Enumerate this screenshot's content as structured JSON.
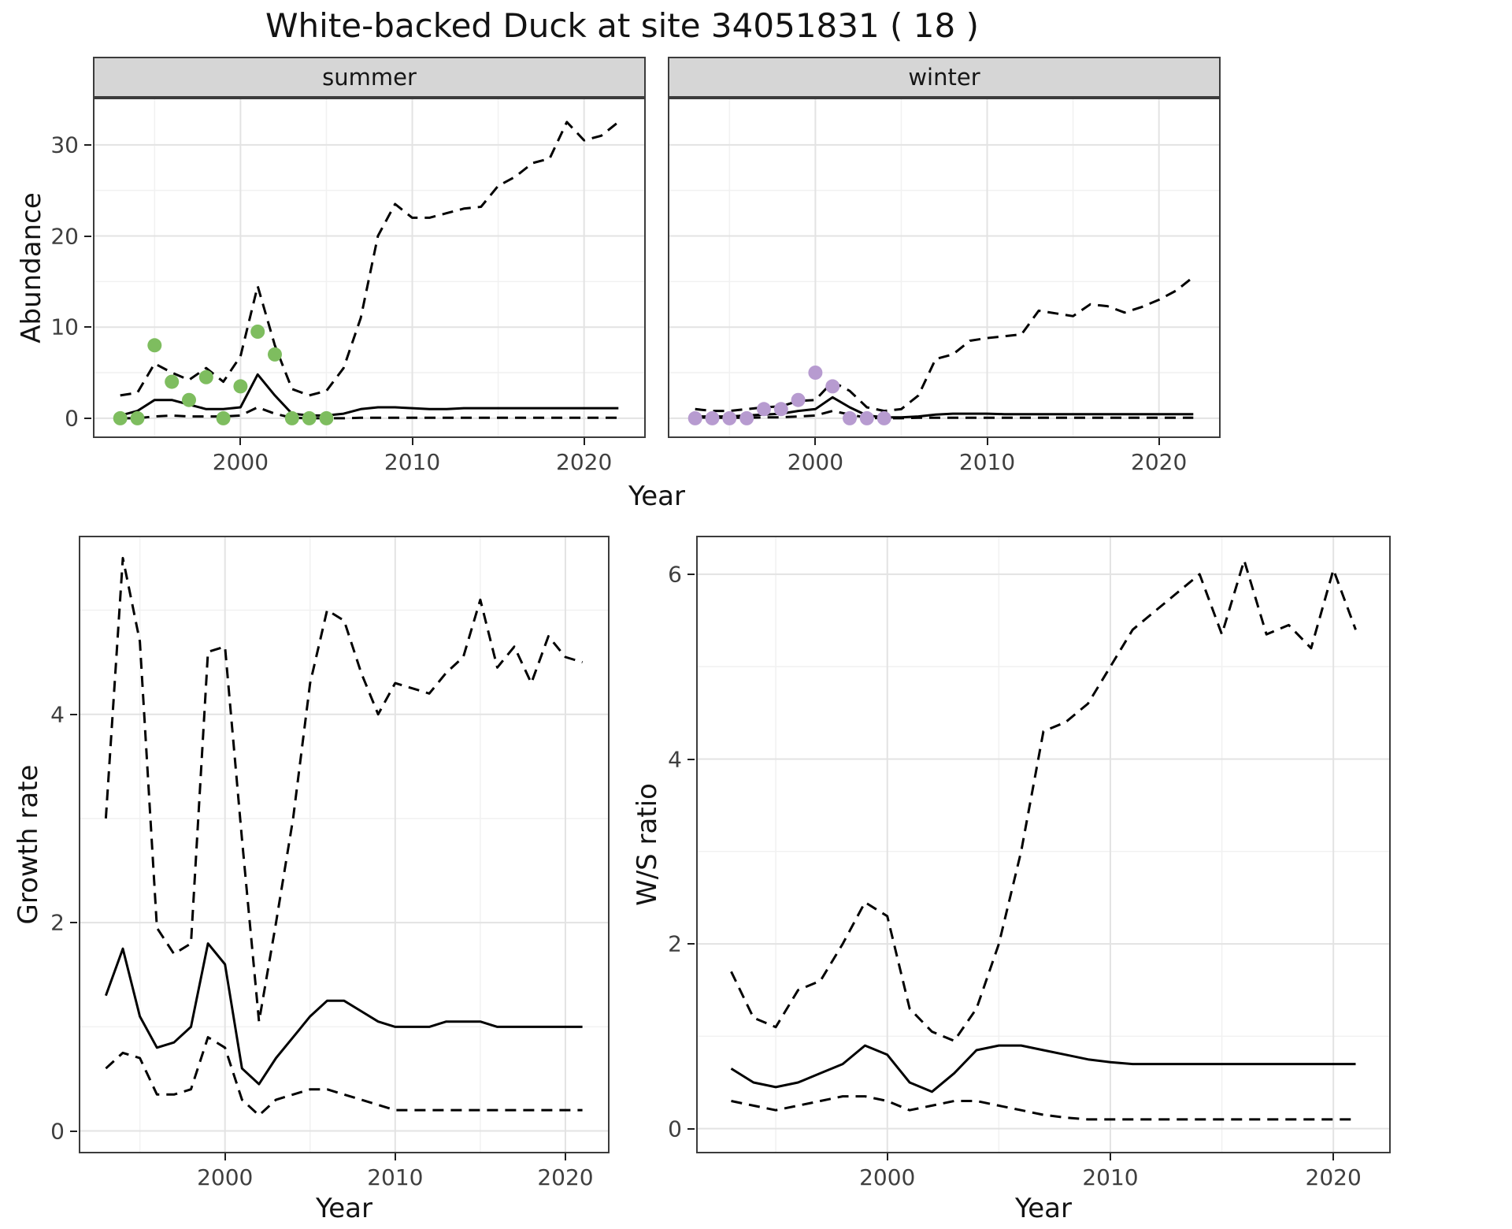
{
  "title": "White-backed Duck at site 34051831 ( 18 )",
  "colors": {
    "line": "#000000",
    "grid_major": "#e3e3e3",
    "grid_minor": "#f1f1f1",
    "strip_bg": "#d6d6d6",
    "panel_border": "#3c3c3c",
    "summer_points": "#7ebd5f",
    "winter_points": "#b79bd0"
  },
  "chart_data": [
    {
      "id": "abundance-summer",
      "type": "line",
      "facet_label": "summer",
      "xlabel": "Year",
      "ylabel": "Abundance",
      "xlim": [
        1991.5,
        2023.5
      ],
      "ylim": [
        -2,
        35
      ],
      "xticks": [
        2000,
        2010,
        2020
      ],
      "xticks_minor": [
        1995,
        2005,
        2015
      ],
      "yticks": [
        0,
        10,
        20,
        30
      ],
      "yticks_minor": [
        5,
        15,
        25
      ],
      "show_yticklabels": true,
      "legend": "none",
      "grid": true,
      "years": [
        1993,
        1994,
        1995,
        1996,
        1997,
        1998,
        1999,
        2000,
        2001,
        2002,
        2003,
        2004,
        2005,
        2006,
        2007,
        2008,
        2009,
        2010,
        2011,
        2012,
        2013,
        2014,
        2015,
        2016,
        2017,
        2018,
        2019,
        2020,
        2021,
        2022
      ],
      "series": [
        {
          "name": "median",
          "style": "solid",
          "values": [
            0.3,
            0.8,
            2.0,
            2.0,
            1.5,
            1.0,
            1.0,
            1.2,
            4.8,
            2.5,
            0.5,
            0.3,
            0.3,
            0.5,
            1.0,
            1.2,
            1.2,
            1.1,
            1.0,
            1.0,
            1.1,
            1.1,
            1.1,
            1.1,
            1.1,
            1.1,
            1.1,
            1.1,
            1.1,
            1.1
          ]
        },
        {
          "name": "upper-ci",
          "style": "dashed",
          "values": [
            2.5,
            2.8,
            6.0,
            5.0,
            4.2,
            5.5,
            4.0,
            6.8,
            14.5,
            8.0,
            3.2,
            2.5,
            3.0,
            5.5,
            11.0,
            20.0,
            23.5,
            22.0,
            22.0,
            22.5,
            23.0,
            23.2,
            25.5,
            26.5,
            28.0,
            28.5,
            32.5,
            30.5,
            31.0,
            32.5
          ]
        },
        {
          "name": "lower-ci",
          "style": "dashed",
          "values": [
            0.0,
            0.0,
            0.2,
            0.3,
            0.2,
            0.2,
            0.2,
            0.3,
            1.2,
            0.5,
            0.05,
            0.0,
            0.0,
            0.0,
            0.05,
            0.05,
            0.05,
            0.05,
            0.05,
            0.05,
            0.05,
            0.05,
            0.05,
            0.05,
            0.05,
            0.05,
            0.05,
            0.05,
            0.05,
            0.05
          ]
        },
        {
          "name": "observed-counts",
          "style": "points",
          "color": "#7ebd5f",
          "x": [
            1993,
            1994,
            1995,
            1996,
            1997,
            1998,
            1999,
            2000,
            2001,
            2002,
            2003,
            2004,
            2005
          ],
          "values": [
            0,
            0,
            8,
            4,
            2,
            4.5,
            0,
            3.5,
            9.5,
            7,
            0,
            0,
            0
          ]
        }
      ]
    },
    {
      "id": "abundance-winter",
      "type": "line",
      "facet_label": "winter",
      "xlabel": "Year",
      "ylabel": "",
      "xlim": [
        1991.5,
        2023.5
      ],
      "ylim": [
        -2,
        35
      ],
      "xticks": [
        2000,
        2010,
        2020
      ],
      "xticks_minor": [
        1995,
        2005,
        2015
      ],
      "yticks": [
        0,
        10,
        20,
        30
      ],
      "yticks_minor": [
        5,
        15,
        25
      ],
      "show_yticklabels": false,
      "legend": "none",
      "grid": true,
      "years": [
        1993,
        1994,
        1995,
        1996,
        1997,
        1998,
        1999,
        2000,
        2001,
        2002,
        2003,
        2004,
        2005,
        2006,
        2007,
        2008,
        2009,
        2010,
        2011,
        2012,
        2013,
        2014,
        2015,
        2016,
        2017,
        2018,
        2019,
        2020,
        2021,
        2022
      ],
      "series": [
        {
          "name": "median",
          "style": "solid",
          "values": [
            0.2,
            0.2,
            0.2,
            0.3,
            0.4,
            0.5,
            0.8,
            1.0,
            2.3,
            1.2,
            0.3,
            0.1,
            0.1,
            0.2,
            0.4,
            0.5,
            0.5,
            0.5,
            0.45,
            0.45,
            0.45,
            0.45,
            0.45,
            0.45,
            0.45,
            0.45,
            0.45,
            0.45,
            0.45,
            0.45
          ]
        },
        {
          "name": "upper-ci",
          "style": "dashed",
          "values": [
            1.0,
            0.8,
            0.8,
            1.0,
            1.2,
            1.3,
            1.9,
            2.0,
            4.0,
            3.0,
            1.2,
            0.8,
            1.0,
            2.5,
            6.5,
            7.0,
            8.5,
            8.8,
            9.0,
            9.2,
            11.8,
            11.5,
            11.2,
            12.5,
            12.3,
            11.6,
            12.2,
            13.0,
            14.0,
            15.5
          ]
        },
        {
          "name": "lower-ci",
          "style": "dashed",
          "values": [
            0.1,
            0.05,
            0.05,
            0.05,
            0.1,
            0.1,
            0.2,
            0.3,
            0.8,
            0.4,
            0.05,
            0.0,
            0.0,
            0.05,
            0.05,
            0.05,
            0.05,
            0.05,
            0.05,
            0.05,
            0.05,
            0.05,
            0.05,
            0.05,
            0.05,
            0.05,
            0.05,
            0.05,
            0.05,
            0.05
          ]
        },
        {
          "name": "observed-counts",
          "style": "points",
          "color": "#b79bd0",
          "x": [
            1993,
            1994,
            1995,
            1996,
            1997,
            1998,
            1999,
            2000,
            2001,
            2002,
            2003,
            2004
          ],
          "values": [
            0,
            0,
            0,
            0,
            1,
            1,
            2,
            5,
            3.5,
            0,
            0,
            0
          ]
        }
      ]
    },
    {
      "id": "growth-rate",
      "type": "line",
      "facet_label": "",
      "xlabel": "Year",
      "ylabel": "Growth rate",
      "xlim": [
        1991.5,
        2022.5
      ],
      "ylim": [
        -0.2,
        5.7
      ],
      "xticks": [
        2000,
        2010,
        2020
      ],
      "xticks_minor": [
        1995,
        2005,
        2015
      ],
      "yticks": [
        0,
        2,
        4
      ],
      "yticks_minor": [
        1,
        3,
        5
      ],
      "show_yticklabels": true,
      "legend": "none",
      "grid": true,
      "years": [
        1993,
        1994,
        1995,
        1996,
        1997,
        1998,
        1999,
        2000,
        2001,
        2002,
        2003,
        2004,
        2005,
        2006,
        2007,
        2008,
        2009,
        2010,
        2011,
        2012,
        2013,
        2014,
        2015,
        2016,
        2017,
        2018,
        2019,
        2020,
        2021
      ],
      "series": [
        {
          "name": "median",
          "style": "solid",
          "values": [
            1.3,
            1.75,
            1.1,
            0.8,
            0.85,
            1.0,
            1.8,
            1.6,
            0.6,
            0.45,
            0.7,
            0.9,
            1.1,
            1.25,
            1.25,
            1.15,
            1.05,
            1.0,
            1.0,
            1.0,
            1.05,
            1.05,
            1.05,
            1.0,
            1.0,
            1.0,
            1.0,
            1.0,
            1.0
          ]
        },
        {
          "name": "upper-ci",
          "style": "dashed",
          "values": [
            3.0,
            5.5,
            4.7,
            1.95,
            1.7,
            1.8,
            4.6,
            4.65,
            2.8,
            1.05,
            2.0,
            3.0,
            4.3,
            5.0,
            4.9,
            4.4,
            4.0,
            4.3,
            4.25,
            4.2,
            4.4,
            4.55,
            5.1,
            4.45,
            4.65,
            4.3,
            4.75,
            4.55,
            4.5
          ]
        },
        {
          "name": "lower-ci",
          "style": "dashed",
          "values": [
            0.6,
            0.75,
            0.7,
            0.35,
            0.35,
            0.4,
            0.9,
            0.8,
            0.3,
            0.15,
            0.3,
            0.35,
            0.4,
            0.4,
            0.35,
            0.3,
            0.25,
            0.2,
            0.2,
            0.2,
            0.2,
            0.2,
            0.2,
            0.2,
            0.2,
            0.2,
            0.2,
            0.2,
            0.2
          ]
        }
      ]
    },
    {
      "id": "ws-ratio",
      "type": "line",
      "facet_label": "",
      "xlabel": "Year",
      "ylabel": "W/S ratio",
      "xlim": [
        1991.5,
        2022.5
      ],
      "ylim": [
        -0.25,
        6.4
      ],
      "xticks": [
        2000,
        2010,
        2020
      ],
      "xticks_minor": [
        1995,
        2005,
        2015
      ],
      "yticks": [
        0,
        2,
        4,
        6
      ],
      "yticks_minor": [
        1,
        3,
        5
      ],
      "show_yticklabels": true,
      "legend": "none",
      "grid": true,
      "years": [
        1993,
        1994,
        1995,
        1996,
        1997,
        1998,
        1999,
        2000,
        2001,
        2002,
        2003,
        2004,
        2005,
        2006,
        2007,
        2008,
        2009,
        2010,
        2011,
        2012,
        2013,
        2014,
        2015,
        2016,
        2017,
        2018,
        2019,
        2020,
        2021
      ],
      "series": [
        {
          "name": "median",
          "style": "solid",
          "values": [
            0.65,
            0.5,
            0.45,
            0.5,
            0.6,
            0.7,
            0.9,
            0.8,
            0.5,
            0.4,
            0.6,
            0.85,
            0.9,
            0.9,
            0.85,
            0.8,
            0.75,
            0.72,
            0.7,
            0.7,
            0.7,
            0.7,
            0.7,
            0.7,
            0.7,
            0.7,
            0.7,
            0.7,
            0.7
          ]
        },
        {
          "name": "upper-ci",
          "style": "dashed",
          "values": [
            1.7,
            1.2,
            1.1,
            1.5,
            1.6,
            2.0,
            2.45,
            2.3,
            1.3,
            1.05,
            0.95,
            1.3,
            2.0,
            3.0,
            4.3,
            4.4,
            4.6,
            5.0,
            5.4,
            5.6,
            5.8,
            6.0,
            5.35,
            6.15,
            5.35,
            5.45,
            5.2,
            6.05,
            5.4
          ]
        },
        {
          "name": "lower-ci",
          "style": "dashed",
          "values": [
            0.3,
            0.25,
            0.2,
            0.25,
            0.3,
            0.35,
            0.35,
            0.3,
            0.2,
            0.25,
            0.3,
            0.3,
            0.25,
            0.2,
            0.15,
            0.12,
            0.1,
            0.1,
            0.1,
            0.1,
            0.1,
            0.1,
            0.1,
            0.1,
            0.1,
            0.1,
            0.1,
            0.1,
            0.1
          ]
        }
      ]
    }
  ]
}
